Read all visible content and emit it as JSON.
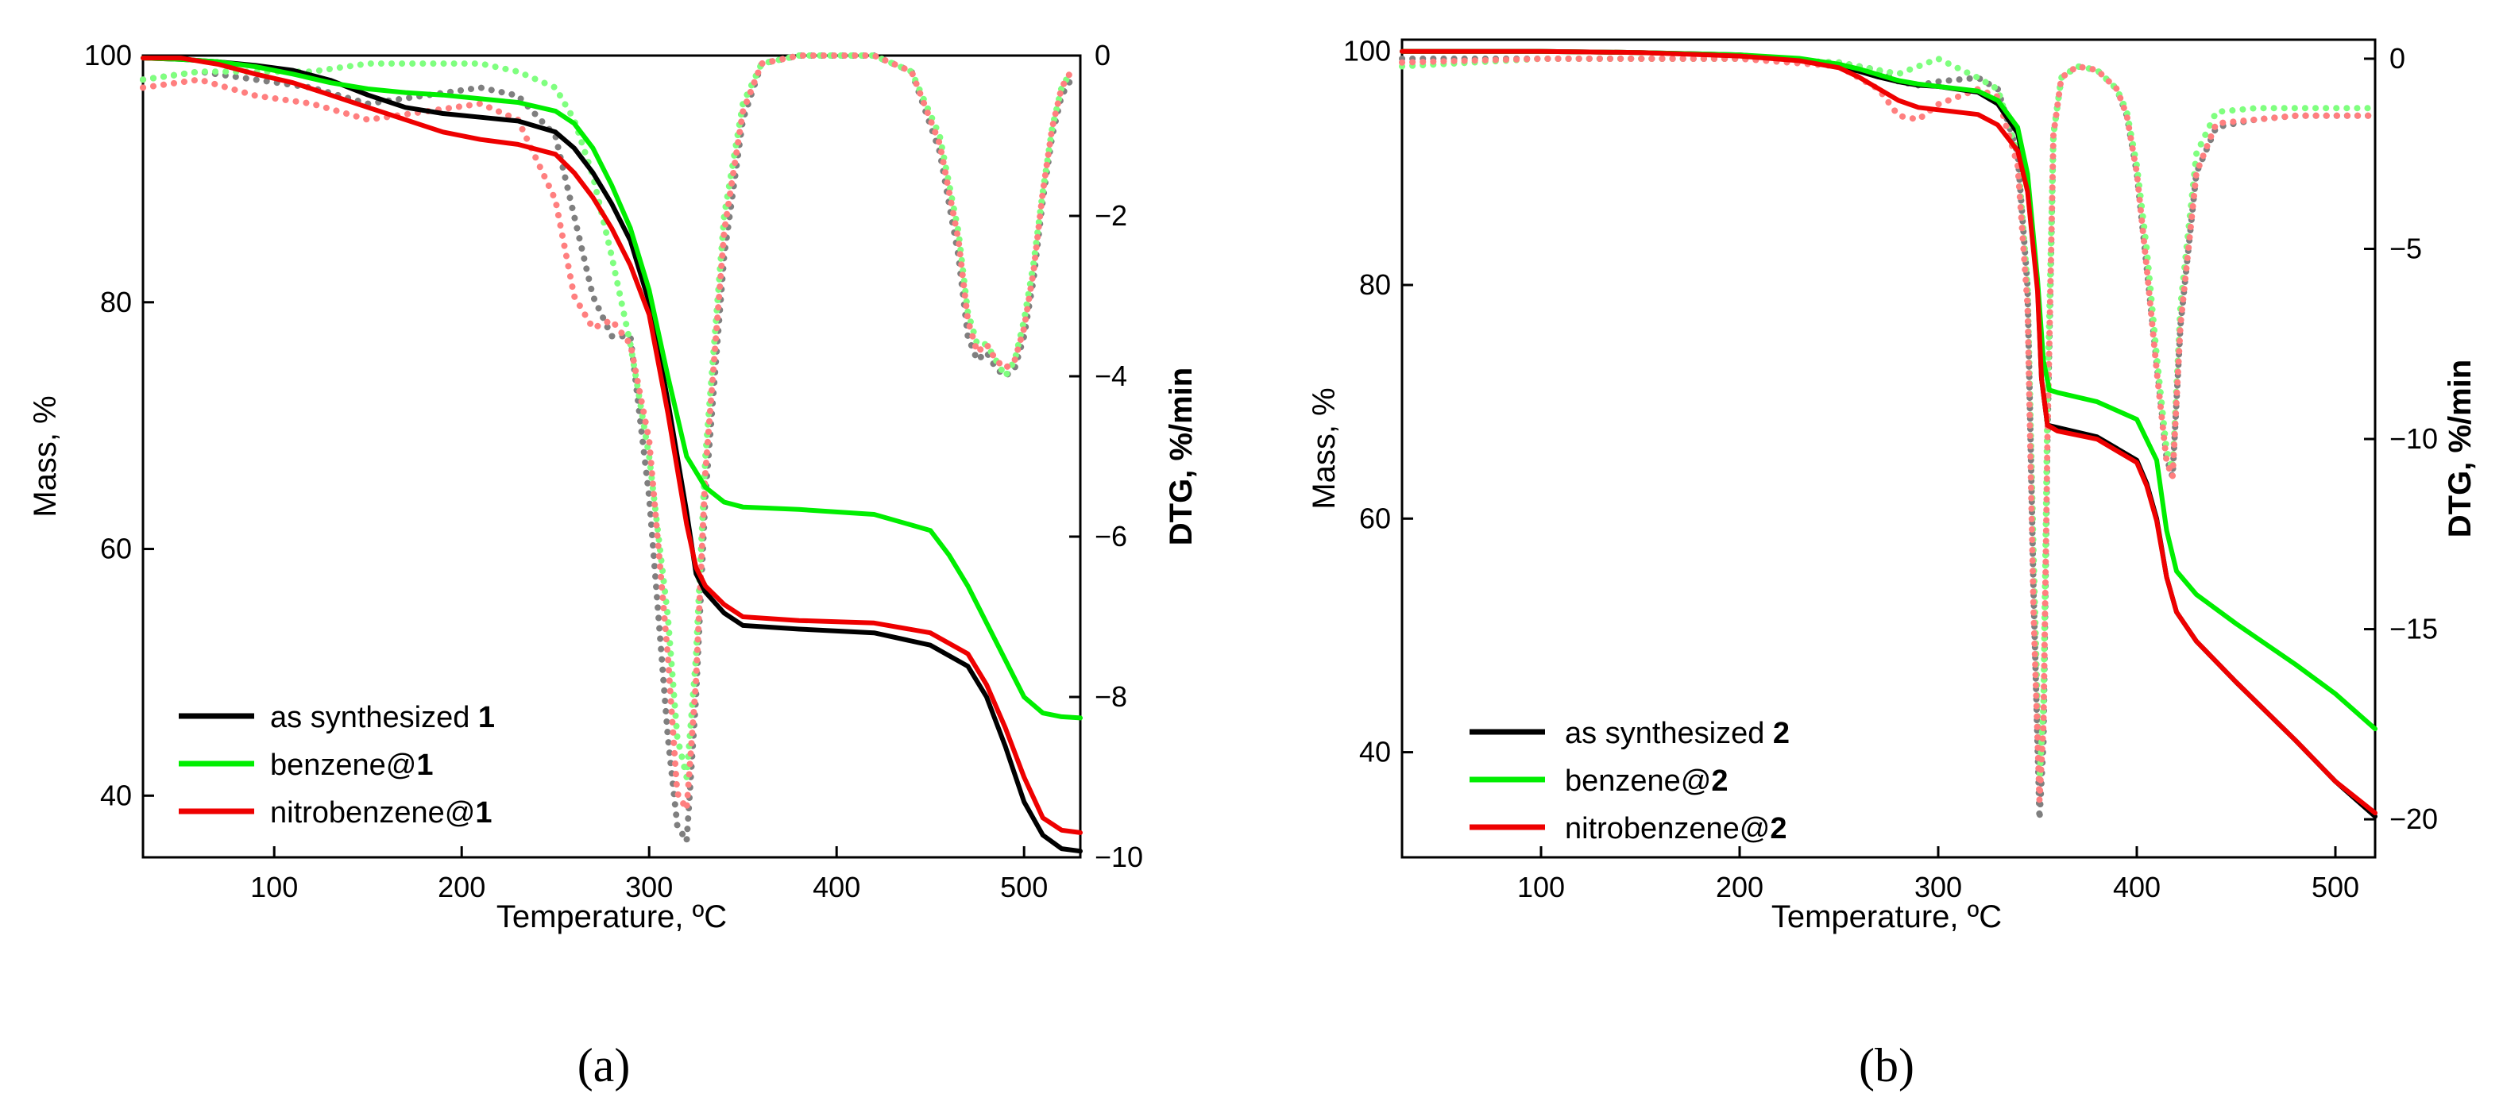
{
  "chart_data": [
    {
      "panel": "a",
      "caption": "(a)",
      "type": "line",
      "xlabel": "Temperature, ºC",
      "ylabel": "Mass, %",
      "y2label": "DTG, %/min",
      "xlim": [
        30,
        530
      ],
      "ylim": [
        35,
        100
      ],
      "y2lim": [
        -10,
        0
      ],
      "xticks": [
        100,
        200,
        300,
        400,
        500
      ],
      "yticks": [
        40,
        60,
        80,
        100
      ],
      "y2ticks": [
        0,
        -2,
        -4,
        -6,
        -8,
        -10
      ],
      "legend_position": "bottom-left",
      "legend": [
        {
          "prefix": "as synthesized ",
          "bold": "1",
          "color": "#000000"
        },
        {
          "prefix": "benzene@",
          "bold": "1",
          "color": "#00ee00"
        },
        {
          "prefix": "nitrobenzene@",
          "bold": "1",
          "color": "#ee0000"
        }
      ],
      "series": [
        {
          "name": "as synthesized 1",
          "axis": "left",
          "style": "solid",
          "color": "#000000",
          "x": [
            30,
            50,
            70,
            90,
            110,
            130,
            150,
            170,
            190,
            210,
            230,
            250,
            260,
            270,
            280,
            290,
            300,
            310,
            320,
            325,
            330,
            340,
            350,
            380,
            420,
            450,
            470,
            480,
            490,
            500,
            510,
            520,
            530
          ],
          "y": [
            99.8,
            99.7,
            99.5,
            99.2,
            98.8,
            98,
            96.8,
            95.8,
            95.3,
            95,
            94.7,
            93.8,
            92.5,
            90.5,
            88,
            85,
            80,
            72,
            63,
            58,
            56.5,
            54.8,
            53.8,
            53.5,
            53.2,
            52.2,
            50.5,
            48,
            44,
            39.5,
            36.8,
            35.7,
            35.5
          ]
        },
        {
          "name": "benzene@1",
          "axis": "left",
          "style": "solid",
          "color": "#00ee00",
          "x": [
            30,
            50,
            70,
            90,
            110,
            130,
            150,
            170,
            190,
            210,
            230,
            250,
            260,
            270,
            280,
            290,
            300,
            310,
            320,
            330,
            340,
            350,
            380,
            420,
            450,
            460,
            470,
            480,
            490,
            500,
            510,
            520,
            530
          ],
          "y": [
            99.8,
            99.7,
            99.5,
            99.1,
            98.5,
            97.8,
            97.3,
            97,
            96.8,
            96.5,
            96.2,
            95.5,
            94.5,
            92.5,
            89.5,
            86,
            81,
            74,
            67.5,
            65,
            63.8,
            63.4,
            63.2,
            62.8,
            61.5,
            59.5,
            57,
            54,
            51,
            48,
            46.7,
            46.4,
            46.3
          ]
        },
        {
          "name": "nitrobenzene@1",
          "axis": "left",
          "style": "solid",
          "color": "#ee0000",
          "x": [
            30,
            50,
            70,
            90,
            110,
            130,
            150,
            170,
            190,
            210,
            230,
            250,
            260,
            270,
            280,
            290,
            300,
            310,
            320,
            325,
            330,
            340,
            350,
            380,
            420,
            450,
            470,
            480,
            490,
            500,
            510,
            520,
            530
          ],
          "y": [
            99.8,
            99.8,
            99.3,
            98.5,
            97.8,
            96.8,
            95.8,
            94.8,
            93.8,
            93.2,
            92.8,
            92,
            90.5,
            88.5,
            86,
            83,
            79,
            71,
            62,
            58.5,
            57,
            55.5,
            54.5,
            54.2,
            54,
            53.2,
            51.5,
            49,
            45.5,
            41.5,
            38.2,
            37.2,
            37
          ]
        },
        {
          "name": "as synthesized 1 (DTG)",
          "axis": "right",
          "style": "dotted",
          "color": "#7f7f7f",
          "x": [
            30,
            60,
            90,
            120,
            150,
            180,
            210,
            230,
            250,
            260,
            270,
            280,
            290,
            300,
            310,
            315,
            320,
            325,
            330,
            340,
            350,
            360,
            380,
            400,
            420,
            440,
            455,
            465,
            470,
            475,
            480,
            485,
            490,
            495,
            500,
            505,
            510,
            515,
            520,
            525
          ],
          "y": [
            -0.3,
            -0.2,
            -0.3,
            -0.4,
            -0.6,
            -0.5,
            -0.4,
            -0.5,
            -1.0,
            -2.0,
            -3.0,
            -3.5,
            -3.5,
            -5.5,
            -8.5,
            -9.6,
            -9.8,
            -8.0,
            -5.5,
            -2.5,
            -0.8,
            -0.1,
            0,
            0,
            0,
            -0.2,
            -1.2,
            -2.5,
            -3.5,
            -3.8,
            -3.7,
            -3.9,
            -4.0,
            -3.9,
            -3.5,
            -2.8,
            -1.8,
            -1.0,
            -0.5,
            -0.3
          ]
        },
        {
          "name": "benzene@1 (DTG)",
          "axis": "right",
          "style": "dotted",
          "color": "#7fff7f",
          "x": [
            30,
            60,
            90,
            120,
            150,
            180,
            210,
            230,
            250,
            260,
            270,
            280,
            290,
            300,
            310,
            315,
            320,
            325,
            330,
            340,
            350,
            360,
            380,
            400,
            420,
            440,
            455,
            465,
            470,
            475,
            480,
            485,
            490,
            495,
            500,
            505,
            510,
            515,
            520,
            525
          ],
          "y": [
            -0.3,
            -0.2,
            -0.2,
            -0.2,
            -0.1,
            -0.1,
            -0.1,
            -0.2,
            -0.4,
            -0.8,
            -1.5,
            -2.5,
            -3.6,
            -5.0,
            -7.0,
            -8.5,
            -9.0,
            -7.5,
            -5.0,
            -2.0,
            -0.6,
            -0.1,
            0,
            0,
            0,
            -0.2,
            -1.0,
            -2.2,
            -3.2,
            -3.6,
            -3.6,
            -3.8,
            -4.0,
            -3.8,
            -3.3,
            -2.6,
            -1.7,
            -0.9,
            -0.4,
            -0.2
          ]
        },
        {
          "name": "nitrobenzene@1 (DTG)",
          "axis": "right",
          "style": "dotted",
          "color": "#ff7f7f",
          "x": [
            30,
            60,
            90,
            120,
            150,
            180,
            210,
            230,
            250,
            260,
            270,
            280,
            290,
            300,
            310,
            315,
            320,
            325,
            330,
            340,
            350,
            360,
            380,
            400,
            420,
            440,
            455,
            465,
            470,
            475,
            480,
            485,
            490,
            495,
            500,
            505,
            510,
            515,
            520,
            525
          ],
          "y": [
            -0.4,
            -0.3,
            -0.5,
            -0.6,
            -0.8,
            -0.7,
            -0.6,
            -0.8,
            -1.8,
            -3.0,
            -3.4,
            -3.3,
            -3.6,
            -4.8,
            -7.5,
            -9.2,
            -9.4,
            -7.8,
            -5.2,
            -2.2,
            -0.7,
            -0.1,
            0,
            0,
            0,
            -0.2,
            -1.1,
            -2.3,
            -3.3,
            -3.7,
            -3.6,
            -3.8,
            -3.9,
            -3.8,
            -3.4,
            -2.7,
            -1.7,
            -0.9,
            -0.4,
            -0.2
          ]
        }
      ]
    },
    {
      "panel": "b",
      "caption": "(b)",
      "type": "line",
      "xlabel": "Temperature, ºC",
      "ylabel": "Mass, %",
      "y2label": "DTG, %/min",
      "xlim": [
        30,
        520
      ],
      "ylim": [
        31,
        101
      ],
      "y2lim": [
        -21,
        0.5
      ],
      "xticks": [
        100,
        200,
        300,
        400,
        500
      ],
      "yticks": [
        40,
        60,
        80,
        100
      ],
      "y2ticks": [
        0,
        -5,
        -10,
        -15,
        -20
      ],
      "legend_position": "bottom-left",
      "legend": [
        {
          "prefix": "as synthesized ",
          "bold": "2",
          "color": "#000000"
        },
        {
          "prefix": "benzene@",
          "bold": "2",
          "color": "#00ee00"
        },
        {
          "prefix": "nitrobenzene@",
          "bold": "2",
          "color": "#ee0000"
        }
      ],
      "series": [
        {
          "name": "as synthesized 2",
          "axis": "left",
          "style": "solid",
          "color": "#000000",
          "x": [
            30,
            100,
            150,
            200,
            230,
            250,
            260,
            270,
            280,
            290,
            300,
            320,
            330,
            340,
            345,
            350,
            352,
            355,
            360,
            380,
            400,
            405,
            410,
            415,
            420,
            430,
            450,
            480,
            500,
            520
          ],
          "y": [
            100,
            100,
            99.9,
            99.7,
            99.3,
            98.7,
            98.3,
            97.8,
            97.4,
            97.1,
            97,
            96.5,
            95.5,
            93,
            89,
            80,
            72,
            68,
            67.8,
            67,
            65,
            63,
            60,
            55,
            52,
            49.5,
            46,
            41,
            37.5,
            34.5
          ]
        },
        {
          "name": "benzene@2",
          "axis": "left",
          "style": "solid",
          "color": "#00ee00",
          "x": [
            30,
            100,
            150,
            200,
            230,
            250,
            260,
            270,
            280,
            290,
            300,
            320,
            330,
            340,
            345,
            350,
            353,
            356,
            360,
            380,
            400,
            410,
            415,
            420,
            430,
            450,
            480,
            500,
            520
          ],
          "y": [
            100,
            100,
            99.9,
            99.7,
            99.4,
            98.9,
            98.5,
            98,
            97.5,
            97.2,
            97,
            96.6,
            95.8,
            93.5,
            89.5,
            80.5,
            73.5,
            71,
            70.8,
            70,
            68.5,
            65,
            59,
            55.5,
            53.5,
            51,
            47.5,
            45,
            42
          ]
        },
        {
          "name": "nitrobenzene@2",
          "axis": "left",
          "style": "solid",
          "color": "#ee0000",
          "x": [
            30,
            100,
            150,
            200,
            230,
            250,
            260,
            270,
            280,
            290,
            300,
            320,
            330,
            340,
            345,
            350,
            352,
            355,
            360,
            380,
            400,
            405,
            410,
            415,
            420,
            430,
            450,
            480,
            500,
            520
          ],
          "y": [
            100,
            100,
            99.9,
            99.6,
            99.2,
            98.6,
            97.8,
            96.8,
            95.8,
            95.2,
            95,
            94.6,
            93.7,
            91.5,
            88,
            79.5,
            72,
            68,
            67.5,
            66.8,
            64.8,
            62.8,
            59.8,
            55,
            52,
            49.5,
            46,
            41,
            37.5,
            34.8
          ]
        },
        {
          "name": "as synthesized 2 (DTG)",
          "axis": "right",
          "style": "dotted",
          "color": "#7f7f7f",
          "x": [
            30,
            100,
            200,
            250,
            270,
            280,
            290,
            300,
            320,
            330,
            340,
            345,
            348,
            351,
            353,
            355,
            358,
            362,
            370,
            380,
            390,
            395,
            400,
            405,
            410,
            415,
            418,
            422,
            430,
            440,
            460,
            480,
            500,
            520
          ],
          "y": [
            0,
            0,
            0,
            -0.1,
            -0.3,
            -0.6,
            -0.7,
            -0.6,
            -0.5,
            -0.8,
            -2.5,
            -6,
            -14,
            -20,
            -18,
            -10,
            -2,
            -0.5,
            -0.2,
            -0.3,
            -0.8,
            -1.5,
            -3,
            -5.5,
            -8,
            -10.5,
            -11,
            -7,
            -3,
            -1.8,
            -1.6,
            -1.5,
            -1.5,
            -1.5
          ]
        },
        {
          "name": "benzene@2 (DTG)",
          "axis": "right",
          "style": "dotted",
          "color": "#7fff7f",
          "x": [
            30,
            100,
            200,
            250,
            270,
            280,
            290,
            300,
            320,
            330,
            340,
            345,
            348,
            351,
            353,
            355,
            358,
            362,
            370,
            380,
            390,
            395,
            400,
            405,
            410,
            415,
            418,
            422,
            430,
            440,
            460,
            480,
            500,
            520
          ],
          "y": [
            -0.2,
            0,
            0,
            -0.1,
            -0.3,
            -0.4,
            -0.2,
            0,
            -0.5,
            -0.8,
            -2.5,
            -6,
            -13,
            -19,
            -17,
            -9,
            -2,
            -0.5,
            -0.2,
            -0.3,
            -0.8,
            -1.4,
            -2.8,
            -5,
            -7.8,
            -10.3,
            -10.8,
            -6.5,
            -2.5,
            -1.4,
            -1.3,
            -1.3,
            -1.3,
            -1.3
          ]
        },
        {
          "name": "nitrobenzene@2 (DTG)",
          "axis": "right",
          "style": "dotted",
          "color": "#ff7f7f",
          "x": [
            30,
            100,
            200,
            250,
            270,
            280,
            290,
            300,
            320,
            330,
            340,
            345,
            348,
            351,
            353,
            355,
            358,
            362,
            370,
            380,
            390,
            395,
            400,
            405,
            410,
            415,
            418,
            422,
            430,
            440,
            460,
            480,
            500,
            520
          ],
          "y": [
            -0.1,
            0,
            0,
            -0.2,
            -0.8,
            -1.5,
            -1.6,
            -1.2,
            -0.8,
            -1,
            -2.8,
            -6.5,
            -14.5,
            -19.5,
            -17.5,
            -10,
            -2,
            -0.5,
            -0.2,
            -0.3,
            -0.8,
            -1.5,
            -3,
            -5.5,
            -8.2,
            -10.6,
            -11,
            -7,
            -3,
            -1.7,
            -1.6,
            -1.5,
            -1.5,
            -1.5
          ]
        }
      ]
    }
  ]
}
